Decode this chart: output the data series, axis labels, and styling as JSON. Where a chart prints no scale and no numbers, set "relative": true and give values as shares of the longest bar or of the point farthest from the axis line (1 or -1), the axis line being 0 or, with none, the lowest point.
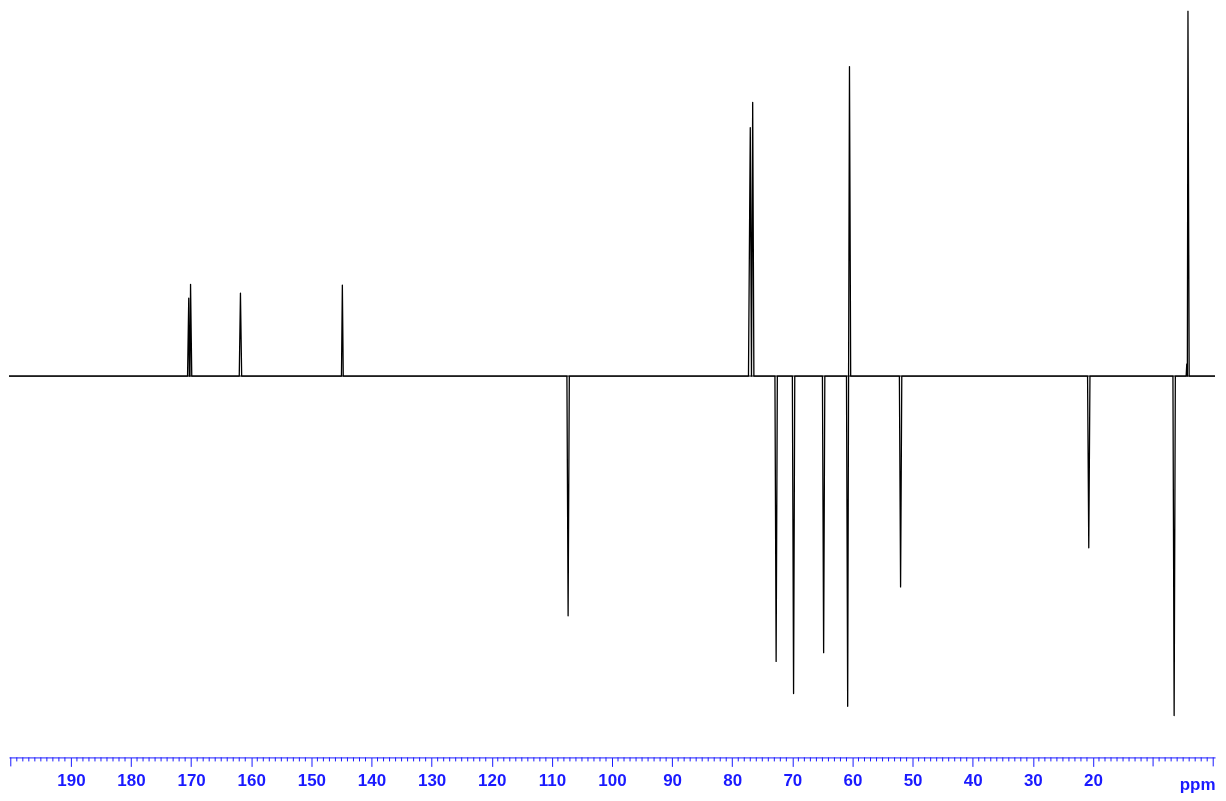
{
  "chart_data": {
    "type": "line",
    "relative": true,
    "xlabel": "ppm",
    "xlim": [
      200.3,
      -0.3
    ],
    "line_style": "solid",
    "grid": false,
    "tick_labels": "x",
    "xticks": [
      190,
      180,
      170,
      160,
      150,
      140,
      130,
      120,
      110,
      100,
      90,
      80,
      70,
      60,
      50,
      40,
      30,
      20
    ],
    "series": [
      {
        "color": "#000000",
        "x": [
          200.3,
          170.6,
          170.4,
          170.3,
          170.2,
          170.1,
          169.9,
          162.0,
          161.8,
          161.6,
          145.0,
          144.85,
          144.7,
          107.5,
          107.3,
          107.1,
          77.3,
          77.0,
          76.8,
          76.6,
          76.4,
          72.9,
          72.7,
          72.5,
          70.0,
          69.8,
          69.6,
          65.0,
          64.8,
          64.6,
          61.0,
          60.8,
          60.65,
          60.5,
          60.3,
          52.2,
          52.0,
          51.8,
          20.9,
          20.7,
          20.5,
          6.7,
          6.5,
          6.3,
          4.5,
          4.4,
          4.3,
          4.2,
          4.0,
          -0.3
        ],
        "values": [
          0,
          0,
          0.213,
          0,
          0,
          0.251,
          0,
          0,
          0.227,
          0,
          0,
          0.249,
          0,
          0,
          -0.656,
          0,
          0,
          0.68,
          0,
          0.749,
          0,
          0,
          -0.781,
          0,
          0,
          -0.869,
          0,
          0,
          -0.757,
          0,
          0,
          -0.904,
          0,
          0.847,
          0,
          0,
          -0.577,
          0,
          0,
          -0.47,
          0,
          0,
          -0.929,
          0,
          0,
          0.033,
          0,
          1.0,
          0,
          0
        ]
      }
    ]
  }
}
